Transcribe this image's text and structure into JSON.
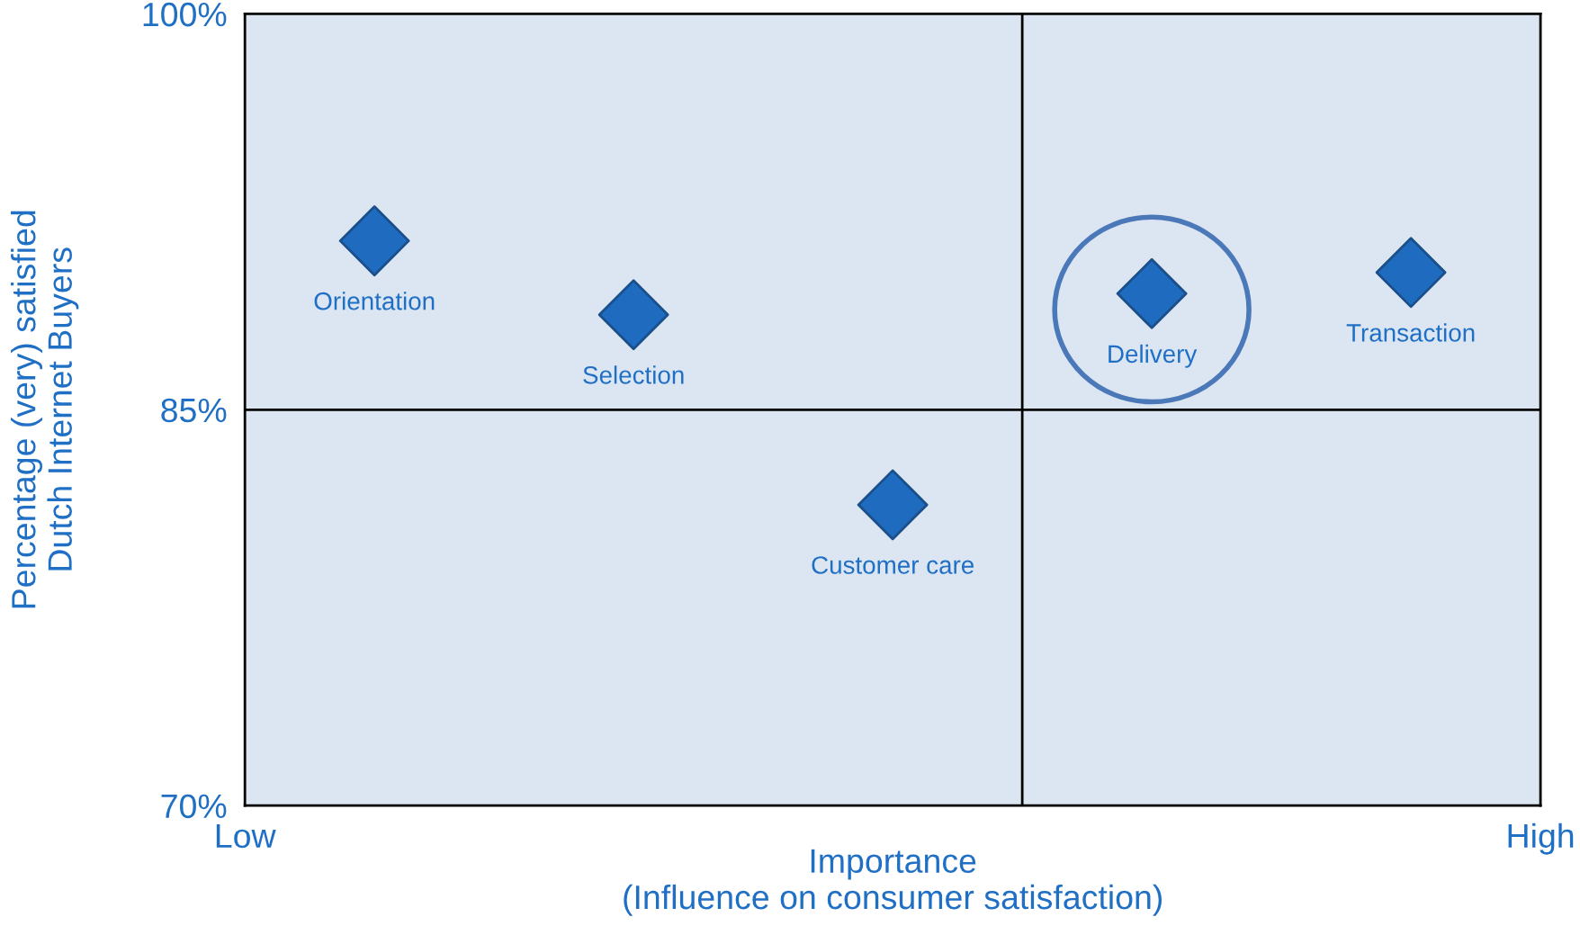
{
  "chart_data": {
    "type": "scatter",
    "xlabel": "Importance\n(Influence on consumer satisfaction)",
    "ylabel": "Percentage (very) satisfied\nDutch Internet Buyers",
    "categories": [
      null,
      null,
      null,
      null,
      null
    ],
    "series": [
      {
        "name": "Orientation",
        "color": "#1f6bbf",
        "values": [
          91.4,
          null,
          null,
          null,
          null
        ]
      },
      {
        "name": "Selection",
        "color": "#1f6bbf",
        "values": [
          null,
          88.6,
          null,
          null,
          null
        ]
      },
      {
        "name": "Customer care",
        "color": "#1f6bbf",
        "values": [
          null,
          null,
          81.4,
          null,
          null
        ]
      },
      {
        "name": "Delivery",
        "color": "#1f6bbf",
        "values": [
          null,
          null,
          null,
          89.4,
          null
        ]
      },
      {
        "name": "Transaction",
        "color": "#1f6bbf",
        "values": [
          null,
          null,
          null,
          null,
          90.2
        ]
      }
    ],
    "marker": "diamond",
    "ylim": [
      70,
      100
    ],
    "yticks": [
      {
        "value": 70,
        "label": "70%"
      },
      {
        "value": 85,
        "label": "85%"
      },
      {
        "value": 100,
        "label": "100%"
      }
    ],
    "ref_lines": [
      {
        "axis": "y",
        "value": 85,
        "color": "#000000"
      }
    ],
    "annotations": [
      "Low",
      "High"
    ],
    "grid": false
  }
}
